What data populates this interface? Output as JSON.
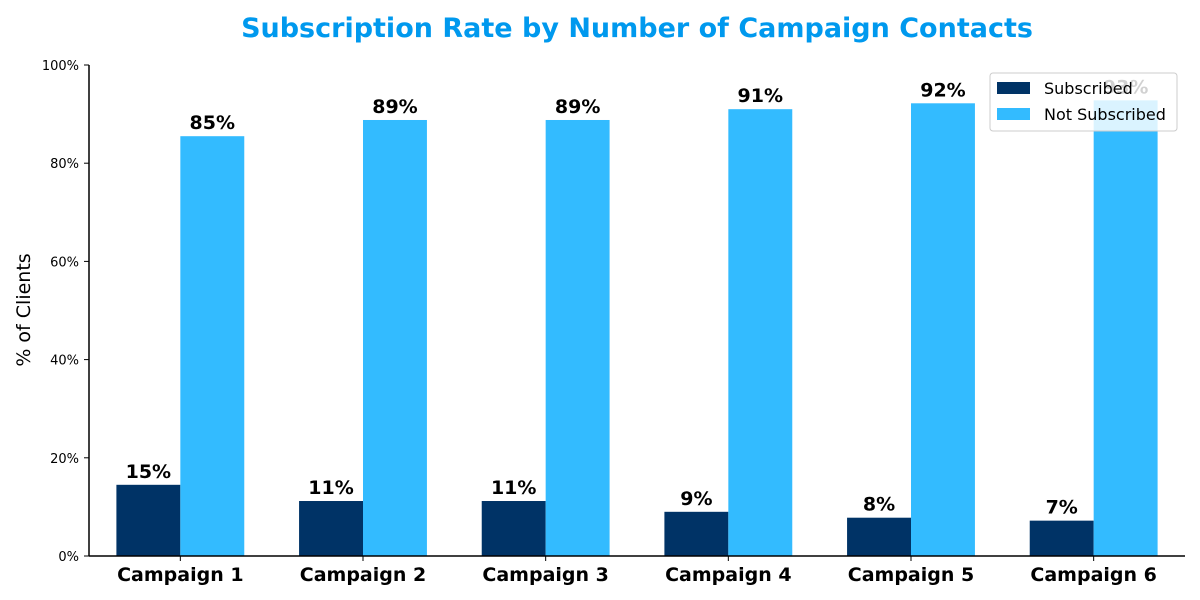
{
  "chart_data": {
    "type": "bar",
    "title": "Subscription Rate by Number of Campaign Contacts",
    "ylabel": "% of Clients",
    "xlabel": "",
    "ylim": [
      0,
      100
    ],
    "yticks": [
      0,
      20,
      40,
      60,
      80,
      100
    ],
    "ytick_labels": [
      "0%",
      "20%",
      "40%",
      "60%",
      "80%",
      "100%"
    ],
    "categories": [
      "Campaign 1",
      "Campaign 2",
      "Campaign 3",
      "Campaign 4",
      "Campaign 5",
      "Campaign 6"
    ],
    "series": [
      {
        "name": "Subscribed",
        "color": "#003366",
        "values": [
          14.5,
          11.2,
          11.2,
          9.0,
          7.8,
          7.2
        ],
        "labels": [
          "15%",
          "11%",
          "11%",
          "9%",
          "8%",
          "7%"
        ]
      },
      {
        "name": "Not Subscribed",
        "color": "#33BBFF",
        "values": [
          85.5,
          88.8,
          88.8,
          91.0,
          92.2,
          92.8
        ],
        "labels": [
          "85%",
          "89%",
          "89%",
          "91%",
          "92%",
          "93%"
        ]
      }
    ],
    "legend_position": "top-right",
    "grid": false,
    "title_color": "#0099EE"
  }
}
